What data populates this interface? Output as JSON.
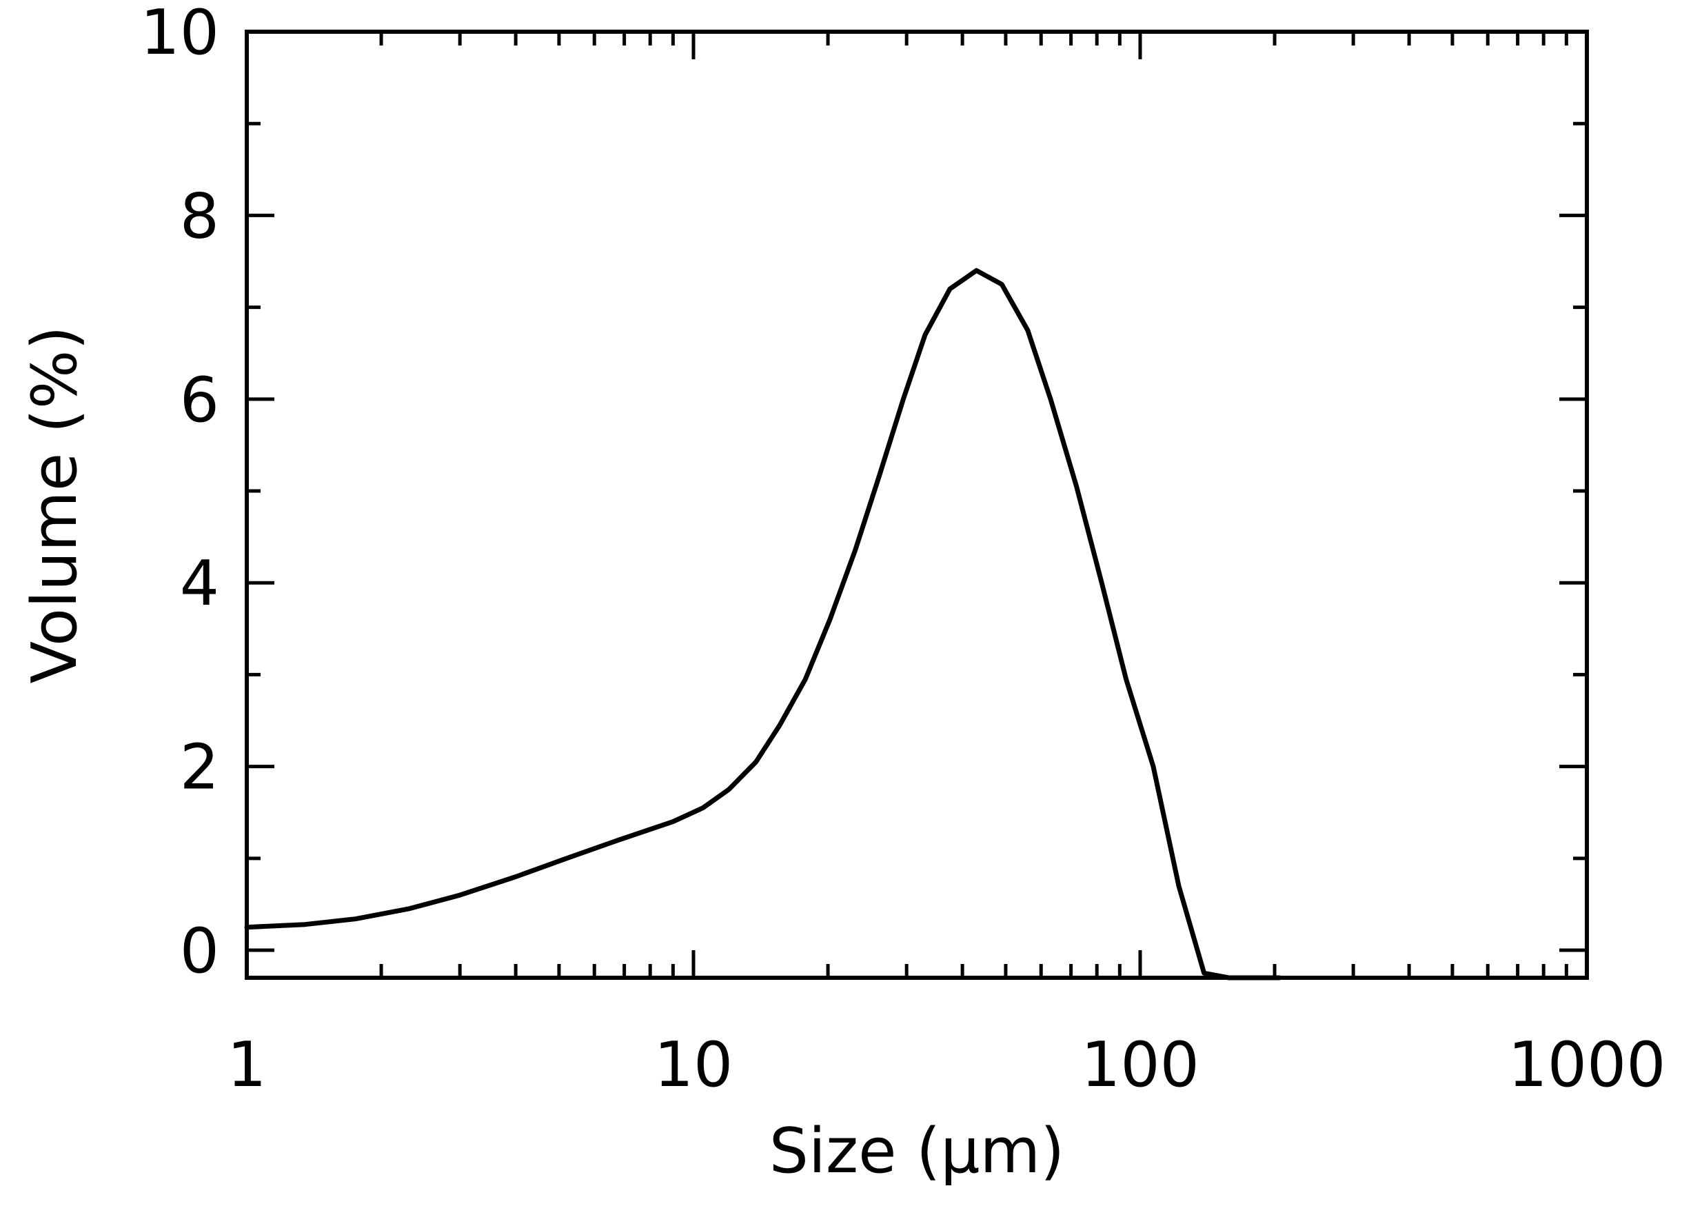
{
  "chart_data": {
    "type": "line",
    "title": "",
    "xlabel": "Size (μm)",
    "ylabel": "Volume (%)",
    "xscale": "log",
    "xlim": [
      1,
      1000
    ],
    "ylim": [
      -0.3,
      10
    ],
    "xticks": [
      {
        "value": 1,
        "label": "1"
      },
      {
        "value": 10,
        "label": "10"
      },
      {
        "value": 100,
        "label": "100"
      },
      {
        "value": 1000,
        "label": "1000"
      }
    ],
    "yticks": [
      {
        "value": 0,
        "label": "0"
      },
      {
        "value": 2,
        "label": "2"
      },
      {
        "value": 4,
        "label": "4"
      },
      {
        "value": 6,
        "label": "6"
      },
      {
        "value": 8,
        "label": "8"
      },
      {
        "value": 10,
        "label": "10"
      }
    ],
    "grid": false,
    "legend": "none",
    "line_color": "#000000",
    "series": [
      {
        "x": [
          1,
          1.35,
          1.75,
          2.3,
          3.0,
          4.0,
          5.2,
          6.8,
          9.0,
          10.5,
          12.0,
          13.8,
          15.6,
          17.8,
          20.2,
          23.0,
          26.0,
          29.5,
          33.0,
          37.5,
          43.0,
          49.0,
          56.0,
          63.0,
          72.0,
          82.0,
          93.0,
          107.0,
          122.0,
          139.0,
          158.0,
          180.0,
          205.0
        ],
        "y": [
          0.25,
          0.28,
          0.34,
          0.45,
          0.6,
          0.8,
          1.0,
          1.2,
          1.4,
          1.55,
          1.75,
          2.05,
          2.45,
          2.95,
          3.6,
          4.35,
          5.15,
          6.0,
          6.7,
          7.2,
          7.4,
          7.25,
          6.75,
          6.0,
          5.05,
          4.0,
          2.95,
          2.0,
          0.7,
          -0.25,
          -0.3,
          -0.3,
          -0.3
        ]
      }
    ]
  }
}
